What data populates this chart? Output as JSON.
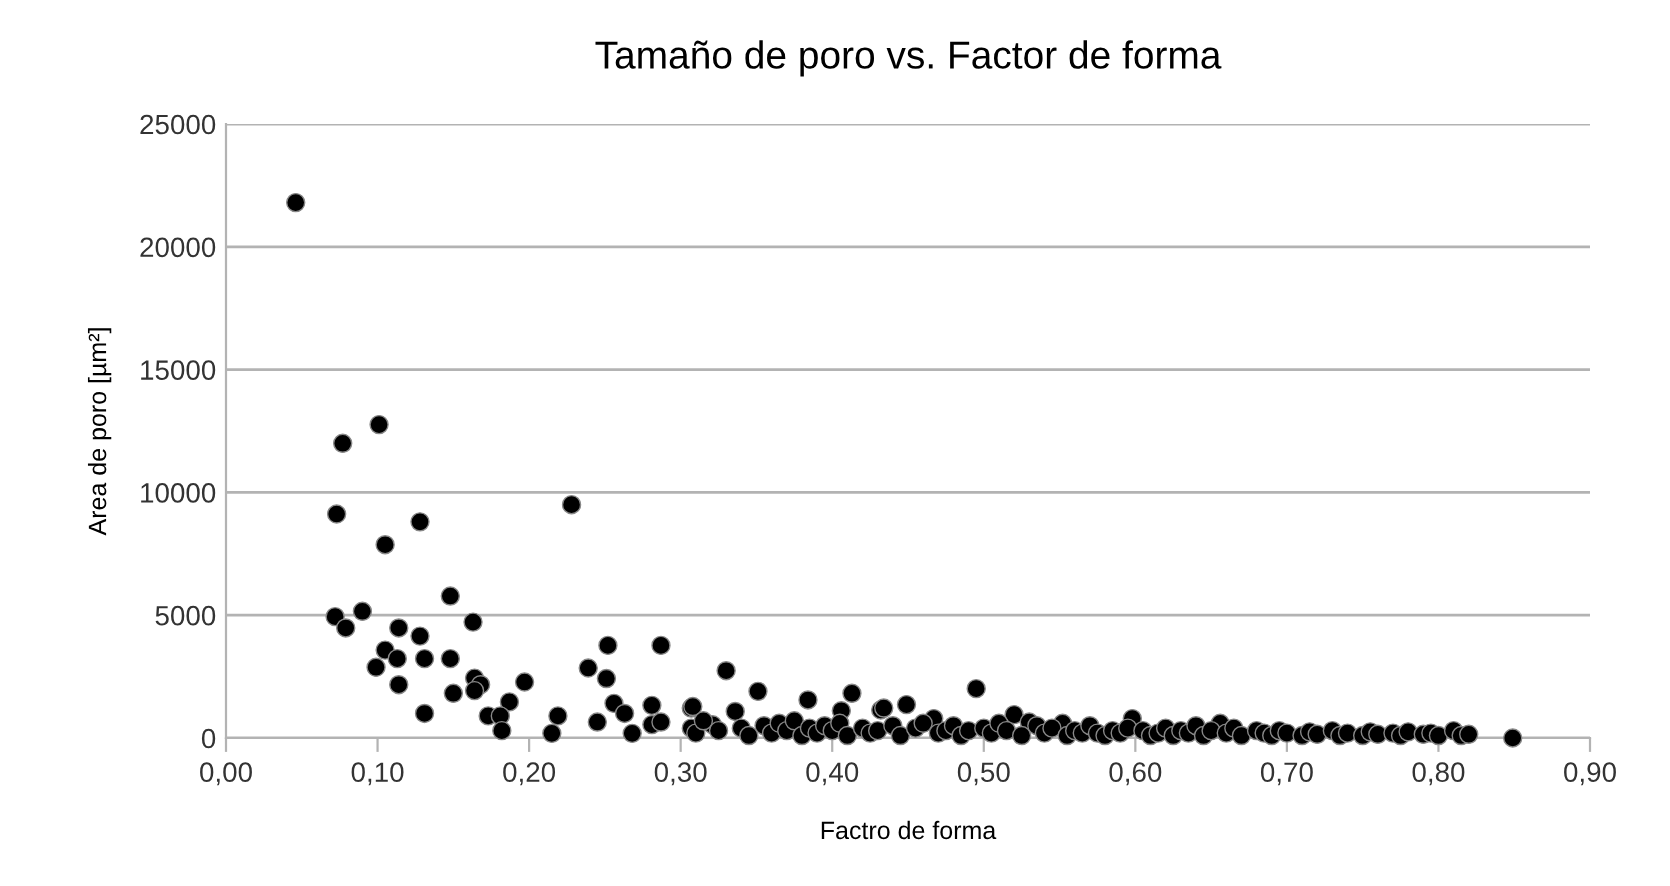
{
  "chart_data": {
    "type": "scatter",
    "title": "Tamaño de poro vs. Factor de forma",
    "xlabel": "Factro de forma",
    "ylabel": "Area de poro [µm²]",
    "xlim": [
      0,
      0.9
    ],
    "xticks": [
      {
        "value": 0,
        "label": "0,00"
      },
      {
        "value": 0.1,
        "label": "0,10"
      },
      {
        "value": 0.2,
        "label": "0,20"
      },
      {
        "value": 0.3,
        "label": "0,30"
      },
      {
        "value": 0.4,
        "label": "0,40"
      },
      {
        "value": 0.5,
        "label": "0,50"
      },
      {
        "value": 0.6,
        "label": "0,60"
      },
      {
        "value": 0.7,
        "label": "0,70"
      },
      {
        "value": 0.8,
        "label": "0,80"
      },
      {
        "value": 0.9,
        "label": "0,90"
      }
    ],
    "ylim": [
      0,
      25000
    ],
    "yticks": [
      0,
      5000,
      10000,
      15000,
      20000,
      25000
    ],
    "grid": "y",
    "marker": "circle",
    "legend": false,
    "series": [
      {
        "color": "#000000",
        "x": [
          0.046,
          0.077,
          0.101,
          0.073,
          0.128,
          0.105,
          0.228,
          0.148,
          0.072,
          0.09,
          0.079,
          0.114,
          0.163,
          0.128,
          0.105,
          0.113,
          0.131,
          0.148,
          0.099,
          0.114,
          0.131,
          0.15,
          0.164,
          0.168,
          0.164,
          0.197,
          0.187,
          0.173,
          0.181,
          0.182,
          0.215,
          0.219,
          0.239,
          0.252,
          0.251,
          0.256,
          0.263,
          0.245,
          0.268,
          0.281,
          0.287,
          0.281,
          0.287,
          0.307,
          0.307,
          0.33,
          0.351,
          0.308,
          0.336,
          0.384,
          0.413,
          0.406,
          0.432,
          0.321,
          0.495,
          0.449,
          0.434,
          0.467,
          0.52,
          0.53,
          0.552,
          0.598,
          0.656,
          0.849,
          0.31,
          0.315,
          0.325,
          0.34,
          0.345,
          0.355,
          0.36,
          0.365,
          0.37,
          0.375,
          0.38,
          0.385,
          0.39,
          0.395,
          0.4,
          0.405,
          0.41,
          0.42,
          0.425,
          0.43,
          0.44,
          0.445,
          0.455,
          0.46,
          0.47,
          0.475,
          0.48,
          0.485,
          0.49,
          0.5,
          0.505,
          0.51,
          0.515,
          0.525,
          0.535,
          0.54,
          0.545,
          0.555,
          0.56,
          0.565,
          0.57,
          0.575,
          0.58,
          0.585,
          0.59,
          0.595,
          0.605,
          0.61,
          0.615,
          0.62,
          0.625,
          0.63,
          0.635,
          0.64,
          0.645,
          0.65,
          0.66,
          0.665,
          0.67,
          0.68,
          0.685,
          0.69,
          0.695,
          0.7,
          0.71,
          0.715,
          0.72,
          0.73,
          0.735,
          0.74,
          0.75,
          0.755,
          0.76,
          0.77,
          0.775,
          0.78,
          0.79,
          0.795,
          0.8,
          0.81,
          0.815,
          0.82
        ],
        "values": [
          21800,
          12000,
          12760,
          9120,
          8800,
          7870,
          9500,
          5780,
          4940,
          5160,
          4480,
          4480,
          4720,
          4150,
          3580,
          3230,
          3230,
          3230,
          2880,
          2170,
          1000,
          1820,
          2440,
          2170,
          1930,
          2280,
          1470,
          900,
          900,
          300,
          190,
          900,
          2850,
          3770,
          2420,
          1410,
          1000,
          650,
          190,
          1330,
          3770,
          545,
          650,
          1220,
          400,
          2740,
          1900,
          1280,
          1080,
          1550,
          1820,
          1110,
          1140,
          540,
          2010,
          1360,
          1220,
          790,
          950,
          650,
          600,
          790,
          600,
          0,
          200,
          700,
          300,
          400,
          100,
          500,
          200,
          600,
          300,
          700,
          100,
          400,
          200,
          500,
          300,
          600,
          100,
          400,
          200,
          300,
          500,
          100,
          400,
          600,
          200,
          300,
          500,
          100,
          300,
          400,
          200,
          600,
          300,
          100,
          500,
          200,
          400,
          100,
          300,
          200,
          500,
          200,
          100,
          300,
          200,
          400,
          300,
          100,
          200,
          400,
          100,
          300,
          200,
          500,
          100,
          300,
          200,
          400,
          100,
          300,
          200,
          100,
          300,
          200,
          100,
          250,
          150,
          300,
          100,
          200,
          100,
          250,
          150,
          200,
          100,
          250,
          150,
          200,
          100,
          300,
          100,
          150
        ]
      }
    ]
  }
}
